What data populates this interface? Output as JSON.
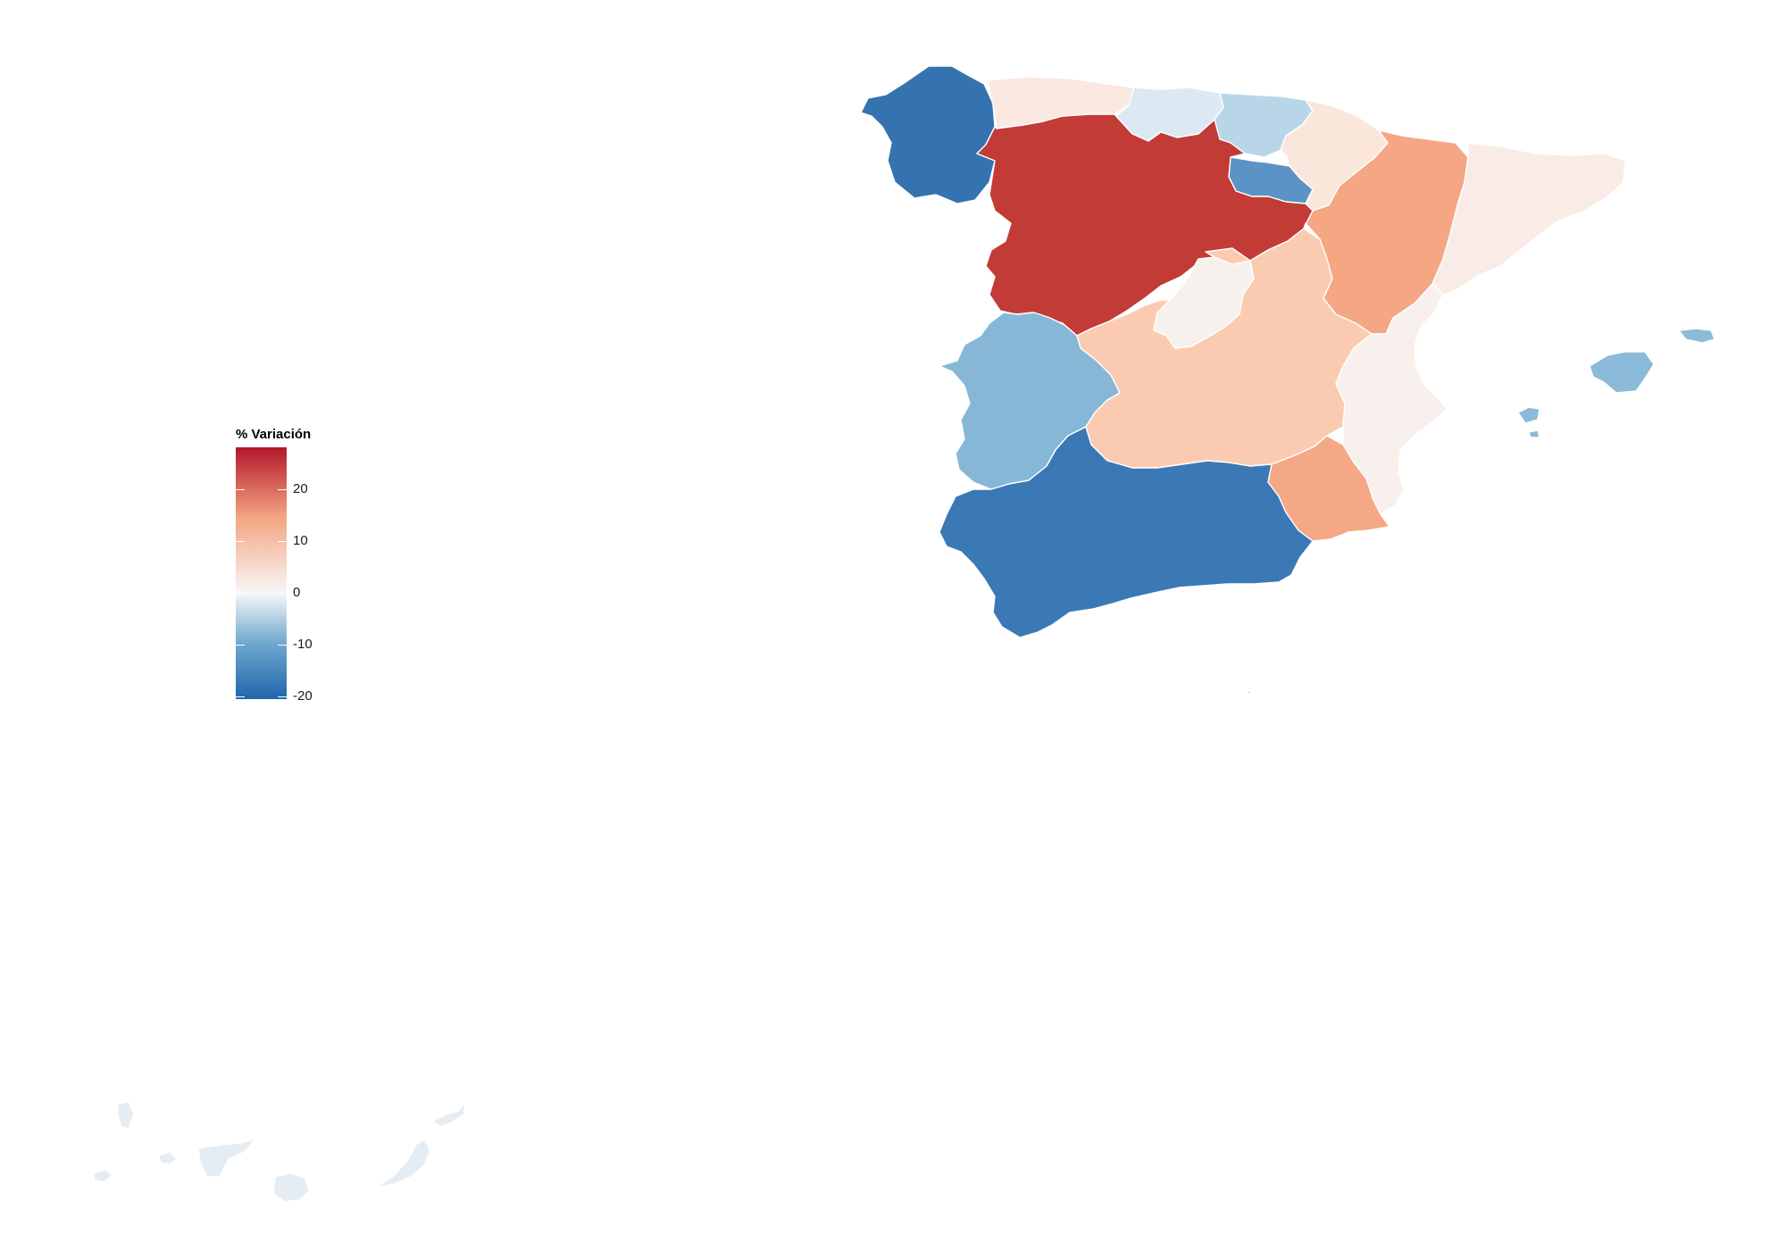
{
  "legend": {
    "title": "% Variación",
    "ticks": [
      {
        "value": 20,
        "label": "20"
      },
      {
        "value": 10,
        "label": "10"
      },
      {
        "value": 0,
        "label": "0"
      },
      {
        "value": -10,
        "label": "-10"
      },
      {
        "value": -20,
        "label": "-20"
      }
    ],
    "scale_min": -20.5,
    "scale_max": 28,
    "colors": {
      "low": "#2166ac",
      "mid_low": "#6ea7d0",
      "neutral": "#f7f7f7",
      "mid_high": "#f4a582",
      "high": "#b2182b"
    }
  },
  "chart_data": {
    "type": "choropleth",
    "legend_position": "left",
    "regions": [
      {
        "id": "galicia",
        "color": "#3572b0"
      },
      {
        "id": "asturias",
        "color": "#fae8e1"
      },
      {
        "id": "cantabria",
        "color": "#dde9f2"
      },
      {
        "id": "pais-vasco",
        "color": "#b9d6e9"
      },
      {
        "id": "navarra",
        "color": "#fbe6dc"
      },
      {
        "id": "la-rioja",
        "color": "#5b93c6"
      },
      {
        "id": "castilla-y-leon",
        "color": "#c23b36"
      },
      {
        "id": "aragon",
        "color": "#f5a683"
      },
      {
        "id": "cataluna",
        "color": "#f9ebe5"
      },
      {
        "id": "madrid",
        "color": "#f7f1ee"
      },
      {
        "id": "castilla-la-mancha",
        "color": "#fbcbb1"
      },
      {
        "id": "extremadura",
        "color": "#86b7d7"
      },
      {
        "id": "comunidad-valenciana",
        "color": "#f8f0ec"
      },
      {
        "id": "region-de-murcia",
        "color": "#f5a886"
      },
      {
        "id": "andalucia",
        "color": "#3b78b6"
      },
      {
        "id": "illes-balears",
        "color": "#8bbbd9"
      },
      {
        "id": "canarias",
        "color": "#e5edf3"
      }
    ]
  }
}
